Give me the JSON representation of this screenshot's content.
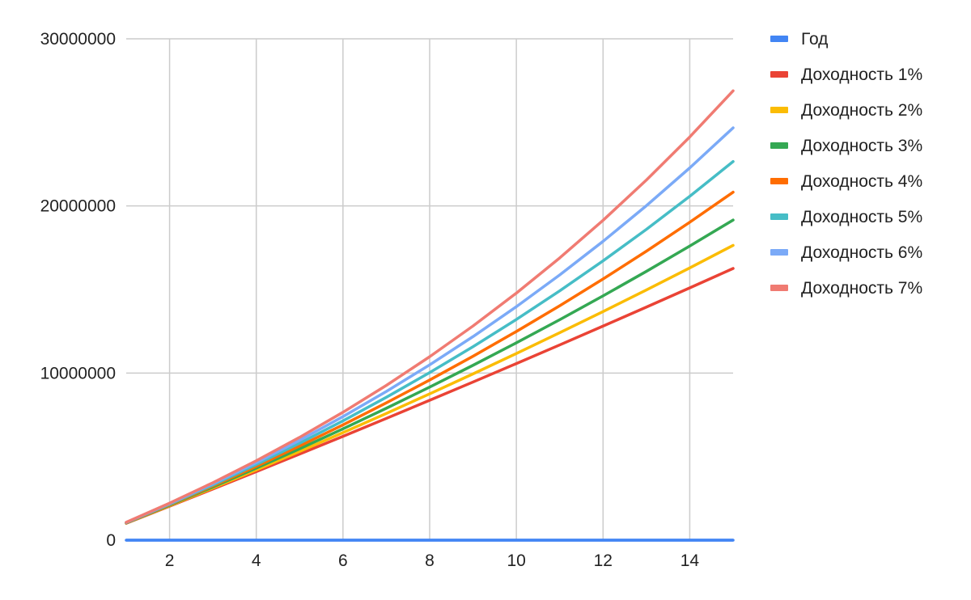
{
  "chart_data": {
    "type": "line",
    "title": "",
    "xlabel": "",
    "ylabel": "",
    "xlim": [
      1,
      15
    ],
    "ylim": [
      0,
      30000000
    ],
    "x_ticks": [
      "2",
      "4",
      "6",
      "8",
      "10",
      "12",
      "14"
    ],
    "y_ticks": [
      "0",
      "10000000",
      "20000000",
      "30000000"
    ],
    "grid": true,
    "legend_position": "right",
    "x": [
      1,
      2,
      3,
      4,
      5,
      6,
      7,
      8,
      9,
      10,
      11,
      12,
      13,
      14,
      15
    ],
    "series": [
      {
        "name": "Год",
        "color": "#4285f4",
        "values": [
          1,
          2,
          3,
          4,
          5,
          6,
          7,
          8,
          9,
          10,
          11,
          12,
          13,
          14,
          15
        ]
      },
      {
        "name": "Доходность 1%",
        "color": "#ea4335",
        "values": [
          1010000,
          2030100,
          3060401,
          4101005,
          5152015,
          6213535,
          7285671,
          8368527,
          9462213,
          10566835,
          11682503,
          12809328,
          13947421,
          15096896,
          16257864
        ]
      },
      {
        "name": "Доходность 2%",
        "color": "#fbbc04",
        "values": [
          1020000,
          2060400,
          3121608,
          4204040,
          5308121,
          6434283,
          7582969,
          8754628,
          9949721,
          11168715,
          12412090,
          13680332,
          14973938,
          16293417,
          17639285
        ]
      },
      {
        "name": "Доходность 3%",
        "color": "#34a853",
        "values": [
          1030000,
          2090900,
          3183627,
          4309136,
          5468410,
          6662462,
          7892336,
          9159106,
          10463879,
          11807796,
          13192030,
          14617790,
          16086324,
          17598914,
          19156881
        ]
      },
      {
        "name": "Доходность 4%",
        "color": "#ff6d01",
        "values": [
          1040000,
          2121600,
          3246464,
          4416323,
          5632975,
          6898294,
          8214226,
          9582795,
          11006107,
          12486351,
          14025805,
          15626838,
          17291911,
          19023588,
          20824531
        ]
      },
      {
        "name": "Доходность 5%",
        "color": "#46bdc6",
        "values": [
          1050000,
          2152500,
          3310125,
          4525631,
          5801913,
          7142008,
          8549109,
          10026564,
          11577893,
          13206787,
          14917127,
          16712983,
          18598632,
          20578564,
          22657492
        ]
      },
      {
        "name": "Доходность 6%",
        "color": "#7baaf7",
        "values": [
          1060000,
          2183600,
          3374616,
          4637093,
          5975319,
          7393838,
          8897468,
          10491316,
          12180795,
          13971643,
          15869941,
          17882138,
          20015066,
          22275970,
          24672528
        ]
      },
      {
        "name": "Доходность 7%",
        "color": "#f07b72",
        "values": [
          1070000,
          2214900,
          3439943,
          4750739,
          6153291,
          7654021,
          9259803,
          10977989,
          12816448,
          14783599,
          16888451,
          19140643,
          21550488,
          24129022,
          26888054
        ]
      }
    ]
  }
}
